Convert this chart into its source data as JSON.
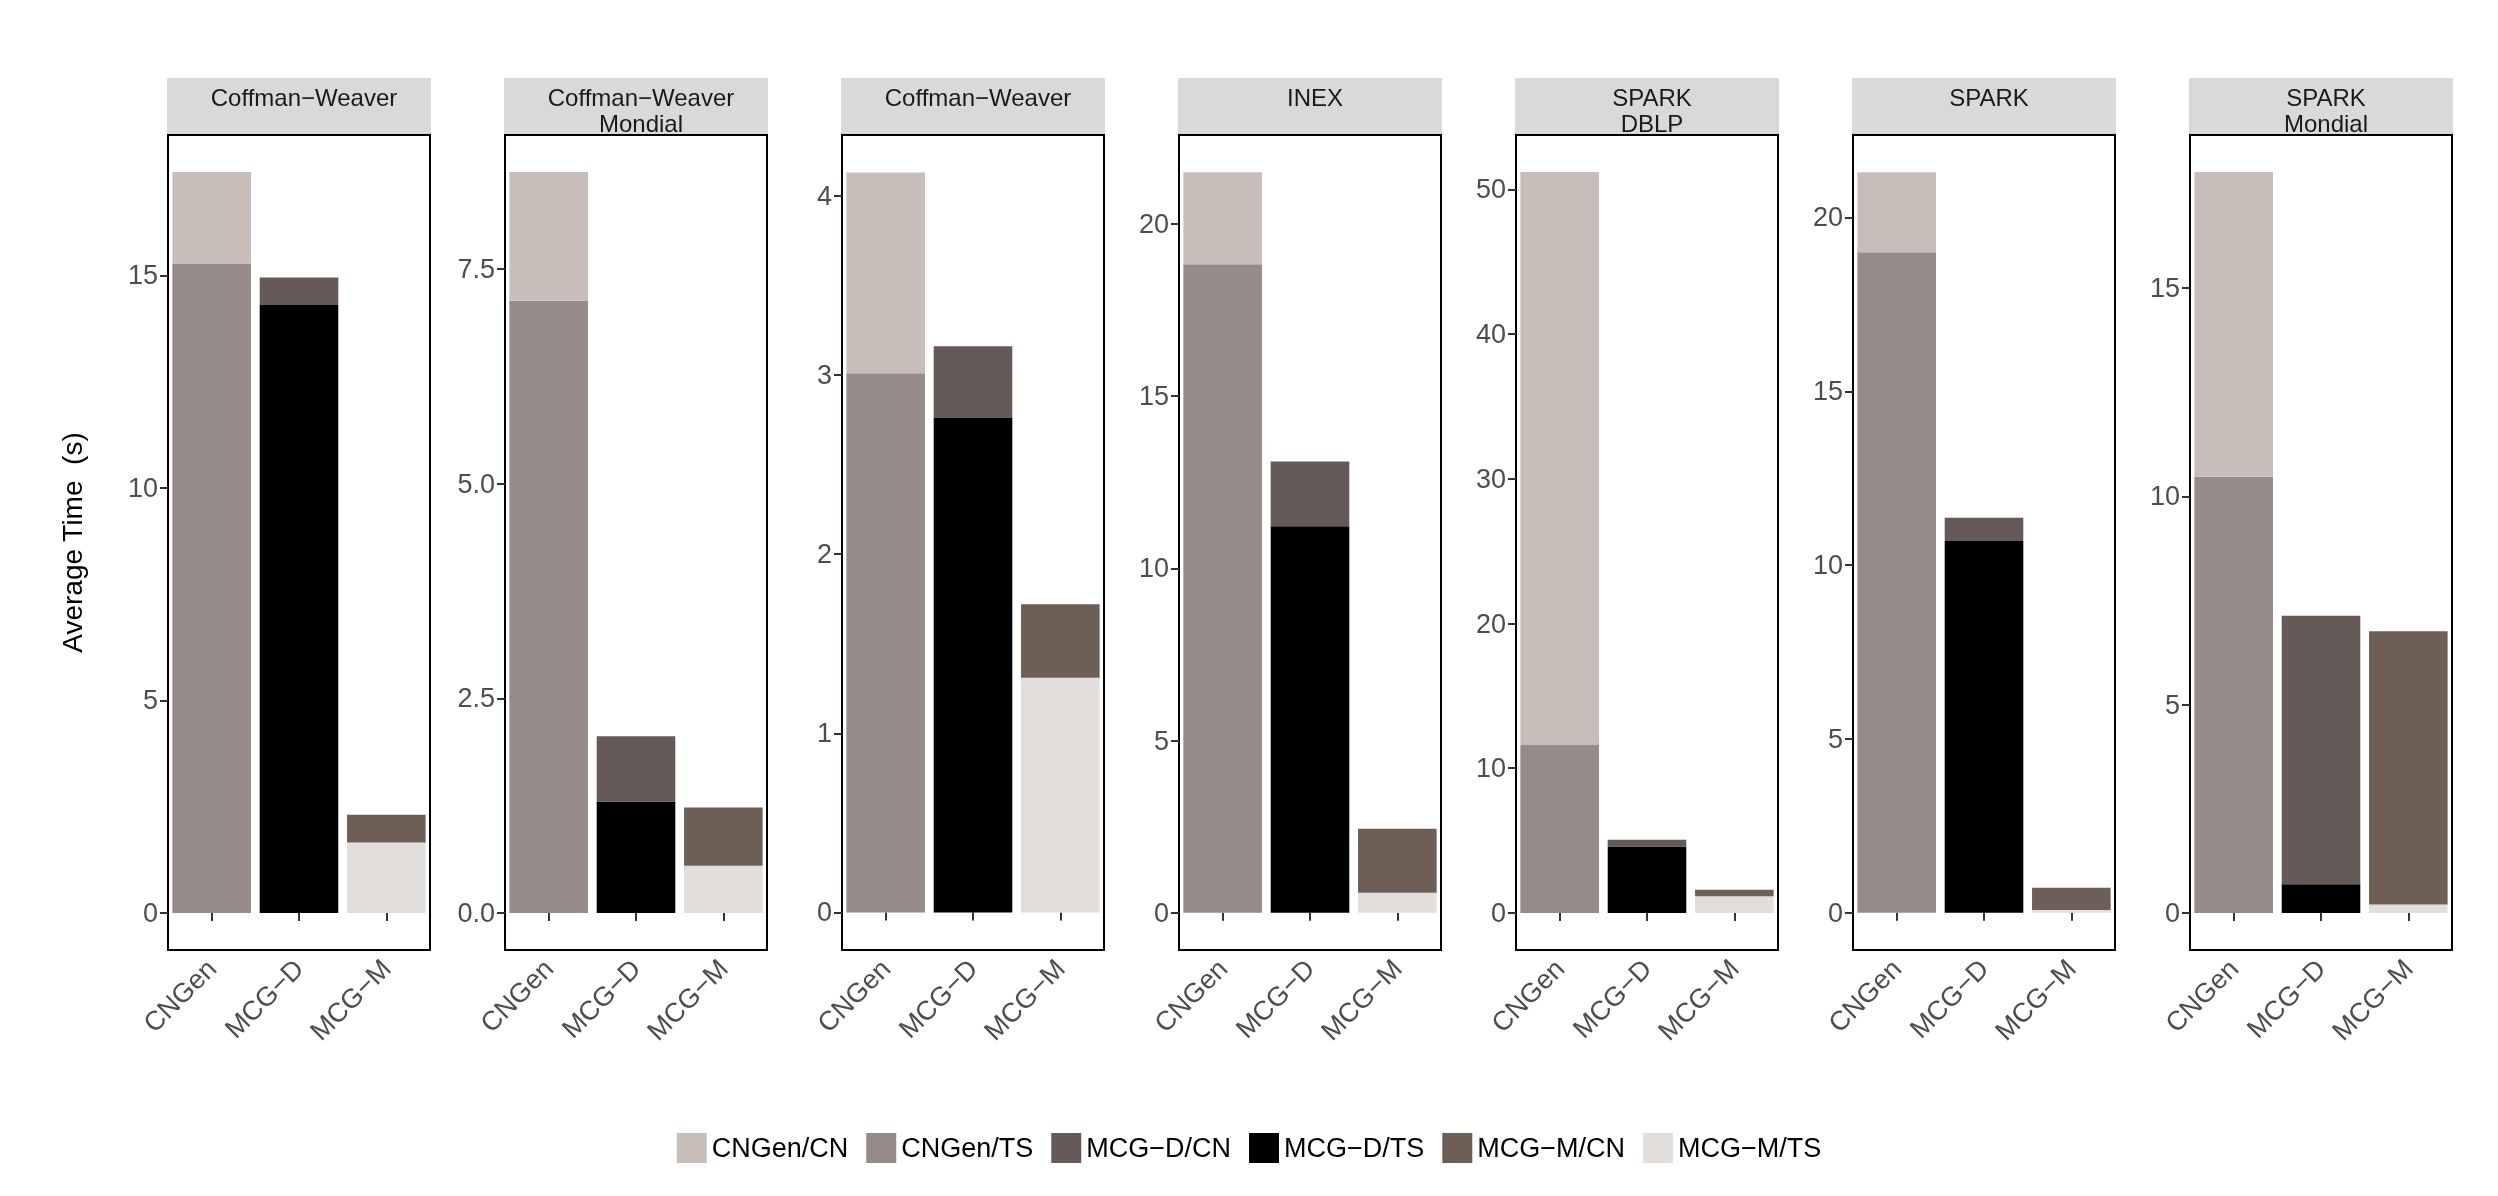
{
  "chart_data": [
    {
      "type": "bar",
      "stacked": true,
      "title": "Coffman−Weaver",
      "ylabel": "Average Time  (s)",
      "legend": "bottom",
      "categories": [
        "CNGen",
        "MCG−D",
        "MCG−M"
      ],
      "ylim": [
        -0.87,
        18.3
      ],
      "yticks": [
        0,
        5,
        10,
        15
      ],
      "series": [
        {
          "name": "CNGen/TS",
          "color": "#968b89",
          "values": [
            15.28,
            null,
            null
          ]
        },
        {
          "name": "CNGen/CN",
          "color": "#c8beb9",
          "values": [
            2.15,
            null,
            null
          ]
        },
        {
          "name": "MCG−D/TS",
          "color": "#000000",
          "values": [
            null,
            14.3,
            null
          ]
        },
        {
          "name": "MCG−D/CN",
          "color": "#655a57",
          "values": [
            null,
            0.65,
            null
          ]
        },
        {
          "name": "MCG−M/TS",
          "color": "#e2dedb",
          "values": [
            null,
            null,
            1.66
          ]
        },
        {
          "name": "MCG−M/CN",
          "color": "#6d5f55",
          "values": [
            null,
            null,
            0.65
          ]
        }
      ]
    },
    {
      "type": "bar",
      "stacked": true,
      "title": "Coffman−Weaver\nMondial",
      "categories": [
        "CNGen",
        "MCG−D",
        "MCG−M"
      ],
      "ylim": [
        -0.43,
        9.06
      ],
      "yticks": [
        {
          "value": 0,
          "label": "0.0"
        },
        {
          "value": 2.5,
          "label": "2.5"
        },
        {
          "value": 5,
          "label": "5.0"
        },
        {
          "value": 7.5,
          "label": "7.5"
        }
      ],
      "series": [
        {
          "color": "#968b89",
          "values": [
            7.13,
            null,
            null
          ]
        },
        {
          "color": "#c8beb9",
          "values": [
            1.5,
            null,
            null
          ]
        },
        {
          "color": "#000000",
          "values": [
            null,
            1.3,
            null
          ]
        },
        {
          "color": "#655a57",
          "values": [
            null,
            0.76,
            null
          ]
        },
        {
          "color": "#e2dedb",
          "values": [
            null,
            null,
            0.55
          ]
        },
        {
          "color": "#6d5f55",
          "values": [
            null,
            null,
            0.68
          ]
        }
      ]
    },
    {
      "type": "bar",
      "stacked": true,
      "title": "Coffman−Weaver",
      "categories": [
        "CNGen",
        "MCG−D",
        "MCG−M"
      ],
      "ylim": [
        -0.21,
        4.34
      ],
      "yticks": [
        0,
        1,
        2,
        3,
        4
      ],
      "series": [
        {
          "color": "#968b89",
          "values": [
            3.01,
            null,
            null
          ]
        },
        {
          "color": "#c8beb9",
          "values": [
            1.12,
            null,
            null
          ]
        },
        {
          "color": "#000000",
          "values": [
            null,
            2.76,
            null
          ]
        },
        {
          "color": "#655a57",
          "values": [
            null,
            0.4,
            null
          ]
        },
        {
          "color": "#e2dedb",
          "values": [
            null,
            null,
            1.31
          ]
        },
        {
          "color": "#6d5f55",
          "values": [
            null,
            null,
            0.41
          ]
        }
      ]
    },
    {
      "type": "bar",
      "stacked": true,
      "title": "INEX",
      "categories": [
        "CNGen",
        "MCG−D",
        "MCG−M"
      ],
      "ylim": [
        -1.08,
        22.58
      ],
      "yticks": [
        0,
        5,
        10,
        15,
        20
      ],
      "series": [
        {
          "color": "#968b89",
          "values": [
            18.83,
            null,
            null
          ]
        },
        {
          "color": "#c8beb9",
          "values": [
            2.67,
            null,
            null
          ]
        },
        {
          "color": "#000000",
          "values": [
            null,
            11.22,
            null
          ]
        },
        {
          "color": "#655a57",
          "values": [
            null,
            1.88,
            null
          ]
        },
        {
          "color": "#e2dedb",
          "values": [
            null,
            null,
            0.58
          ]
        },
        {
          "color": "#6d5f55",
          "values": [
            null,
            null,
            1.86
          ]
        }
      ]
    },
    {
      "type": "bar",
      "stacked": true,
      "title": "SPARK\nDBLP",
      "categories": [
        "CNGen",
        "MCG−D",
        "MCG−M"
      ],
      "ylim": [
        -2.56,
        53.76
      ],
      "yticks": [
        0,
        10,
        20,
        30,
        40,
        50
      ],
      "series": [
        {
          "color": "#968b89",
          "values": [
            11.6,
            null,
            null
          ]
        },
        {
          "color": "#c8beb9",
          "values": [
            39.6,
            null,
            null
          ]
        },
        {
          "color": "#000000",
          "values": [
            null,
            4.6,
            null
          ]
        },
        {
          "color": "#655a57",
          "values": [
            null,
            0.46,
            null
          ]
        },
        {
          "color": "#e2dedb",
          "values": [
            null,
            null,
            1.15
          ]
        },
        {
          "color": "#6d5f55",
          "values": [
            null,
            null,
            0.45
          ]
        }
      ]
    },
    {
      "type": "bar",
      "stacked": true,
      "title": "SPARK",
      "categories": [
        "CNGen",
        "MCG−D",
        "MCG−M"
      ],
      "ylim": [
        -1.07,
        22.37
      ],
      "yticks": [
        0,
        5,
        10,
        15,
        20
      ],
      "series": [
        {
          "color": "#968b89",
          "values": [
            19.0,
            null,
            null
          ]
        },
        {
          "color": "#c8beb9",
          "values": [
            2.3,
            null,
            null
          ]
        },
        {
          "color": "#000000",
          "values": [
            null,
            10.69,
            null
          ]
        },
        {
          "color": "#655a57",
          "values": [
            null,
            0.67,
            null
          ]
        },
        {
          "color": "#e2dedb",
          "values": [
            null,
            null,
            0.08
          ]
        },
        {
          "color": "#6d5f55",
          "values": [
            null,
            null,
            0.64
          ]
        }
      ]
    },
    {
      "type": "bar",
      "stacked": true,
      "title": "SPARK\nMondial",
      "categories": [
        "CNGen",
        "MCG−D",
        "MCG−M"
      ],
      "ylim": [
        -0.89,
        18.67
      ],
      "yticks": [
        0,
        5,
        10,
        15
      ],
      "series": [
        {
          "color": "#968b89",
          "values": [
            10.47,
            null,
            null
          ]
        },
        {
          "color": "#c8beb9",
          "values": [
            7.31,
            null,
            null
          ]
        },
        {
          "color": "#000000",
          "values": [
            null,
            0.69,
            null
          ]
        },
        {
          "color": "#655a57",
          "values": [
            null,
            6.44,
            null
          ]
        },
        {
          "color": "#e2dedb",
          "values": [
            null,
            null,
            0.2
          ]
        },
        {
          "color": "#6d5f55",
          "values": [
            null,
            null,
            6.56
          ]
        }
      ]
    }
  ]
}
